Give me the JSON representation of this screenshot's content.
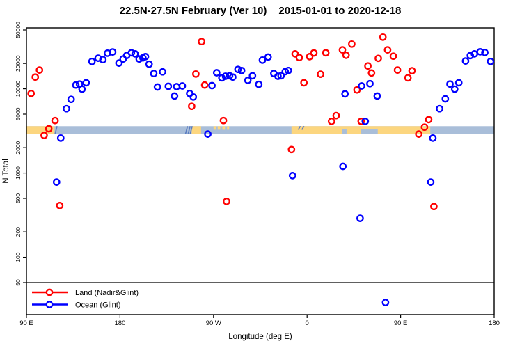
{
  "chart_data": {
    "type": "scatter",
    "title": "22.5N-27.5N February (Ver 10)",
    "subtitle": "2015-01-01 to 2020-12-18",
    "xlabel": "Longitude (deg E)",
    "ylabel": "N Total",
    "x_axis": {
      "range_deg": [
        90,
        540
      ],
      "ticks_deg": [
        90,
        180,
        270,
        360,
        450,
        540
      ],
      "tick_labels": [
        "90 E",
        "180",
        "90 W",
        "0",
        "90 E",
        "180"
      ]
    },
    "y_axis": {
      "scale": "log10",
      "range": [
        21,
        53000
      ],
      "ticks": [
        50,
        100,
        200,
        500,
        1000,
        2000,
        5000,
        10000,
        20000,
        50000
      ]
    },
    "reference_line_y": 50,
    "map_band": {
      "value_top": 3600,
      "value_bottom": 2900,
      "ocean_color": "#a9bed9",
      "land_color": "#fcd67f",
      "coast_color": "#5a7cc0",
      "land_segments_deg": [
        [
          90,
          117
        ],
        [
          249,
          258
        ],
        [
          345,
          478.5
        ]
      ],
      "island_specks_deg": [
        [
          270,
          272.5
        ],
        [
          274,
          276.5
        ],
        [
          278.5,
          281
        ],
        [
          283,
          285
        ]
      ],
      "sea_notches_deg": [
        [
          394,
          398
        ],
        [
          411.5,
          428
        ]
      ],
      "coast_streaks": [
        {
          "deg": 118.5,
          "frac": 1
        },
        {
          "deg": 244,
          "frac": 1
        },
        {
          "deg": 246.5,
          "frac": 1
        },
        {
          "deg": 248.5,
          "frac": 1
        },
        {
          "deg": 352.5,
          "frac": 0.45
        },
        {
          "deg": 356,
          "frac": 0.45
        }
      ]
    },
    "series": [
      {
        "name": "Land (Nadir&Glint)",
        "color": "#ff0000",
        "points": [
          [
            94.5,
            8800
          ],
          [
            98.5,
            13800
          ],
          [
            102.5,
            16700
          ],
          [
            107,
            2800
          ],
          [
            111.5,
            3350
          ],
          [
            117.5,
            4200
          ],
          [
            122,
            410
          ],
          [
            249,
            6200
          ],
          [
            253,
            15000
          ],
          [
            258.5,
            36400
          ],
          [
            261.5,
            11100
          ],
          [
            279.5,
            4200
          ],
          [
            282.5,
            460
          ],
          [
            345,
            1900
          ],
          [
            348.5,
            26000
          ],
          [
            352.5,
            23500
          ],
          [
            357,
            11800
          ],
          [
            362.5,
            24100
          ],
          [
            366.5,
            26700
          ],
          [
            373,
            14900
          ],
          [
            378,
            26800
          ],
          [
            383.5,
            4100
          ],
          [
            388,
            4800
          ],
          [
            394,
            29000
          ],
          [
            397.5,
            25000
          ],
          [
            403,
            34000
          ],
          [
            408,
            9700
          ],
          [
            412,
            4100
          ],
          [
            418.5,
            18700
          ],
          [
            422,
            15400
          ],
          [
            428.5,
            23000
          ],
          [
            433,
            41000
          ],
          [
            437.5,
            29000
          ],
          [
            443,
            24400
          ],
          [
            447,
            16700
          ],
          [
            457,
            13500
          ],
          [
            461,
            16400
          ],
          [
            467.5,
            2900
          ],
          [
            473,
            3500
          ],
          [
            477,
            4300
          ],
          [
            482,
            400
          ]
        ]
      },
      {
        "name": "Ocean (Glint)",
        "color": "#0000ff",
        "points": [
          [
            119,
            780
          ],
          [
            123,
            2600
          ],
          [
            128.5,
            5800
          ],
          [
            133,
            7500
          ],
          [
            137.5,
            11100
          ],
          [
            141,
            11400
          ],
          [
            143.5,
            9900
          ],
          [
            147.5,
            11800
          ],
          [
            153,
            21100
          ],
          [
            159,
            23100
          ],
          [
            163.5,
            22200
          ],
          [
            168,
            26500
          ],
          [
            173,
            27400
          ],
          [
            179,
            20200
          ],
          [
            183,
            22600
          ],
          [
            186.5,
            24900
          ],
          [
            191,
            26800
          ],
          [
            194.5,
            26000
          ],
          [
            198.5,
            22600
          ],
          [
            202,
            23300
          ],
          [
            204.5,
            24100
          ],
          [
            208,
            19600
          ],
          [
            212.5,
            15200
          ],
          [
            216,
            10500
          ],
          [
            221,
            15900
          ],
          [
            226.5,
            10700
          ],
          [
            232.5,
            8200
          ],
          [
            234.5,
            10600
          ],
          [
            240,
            10800
          ],
          [
            247,
            8800
          ],
          [
            250.5,
            8000
          ],
          [
            264.5,
            2900
          ],
          [
            268.5,
            10900
          ],
          [
            273,
            15500
          ],
          [
            278,
            13500
          ],
          [
            281.5,
            14100
          ],
          [
            285.5,
            14300
          ],
          [
            288.5,
            13800
          ],
          [
            293.5,
            17000
          ],
          [
            297,
            16500
          ],
          [
            303,
            12600
          ],
          [
            307.5,
            14300
          ],
          [
            313.5,
            11300
          ],
          [
            317,
            21900
          ],
          [
            322.5,
            23800
          ],
          [
            328,
            15200
          ],
          [
            332,
            14100
          ],
          [
            335,
            14300
          ],
          [
            339,
            16000
          ],
          [
            342,
            16500
          ],
          [
            346,
            930
          ],
          [
            394.5,
            1200
          ],
          [
            396.5,
            8700
          ],
          [
            411,
            290
          ],
          [
            412.5,
            10800
          ],
          [
            416,
            4100
          ],
          [
            420.5,
            11500
          ],
          [
            427.5,
            8200
          ],
          [
            435.5,
            29
          ],
          [
            479,
            780
          ],
          [
            481,
            2600
          ],
          [
            487.5,
            5800
          ],
          [
            493,
            7600
          ],
          [
            497.5,
            11400
          ],
          [
            502,
            9900
          ],
          [
            506,
            11800
          ],
          [
            512.5,
            21400
          ],
          [
            517,
            24800
          ],
          [
            521,
            26000
          ],
          [
            526.5,
            27500
          ],
          [
            531,
            27000
          ],
          [
            536.5,
            21100
          ]
        ]
      }
    ],
    "legend": {
      "position": "bottom-left",
      "items": [
        {
          "label": "Land (Nadir&Glint)",
          "color": "#ff0000"
        },
        {
          "label": "Ocean (Glint)",
          "color": "#0000ff"
        }
      ]
    }
  }
}
